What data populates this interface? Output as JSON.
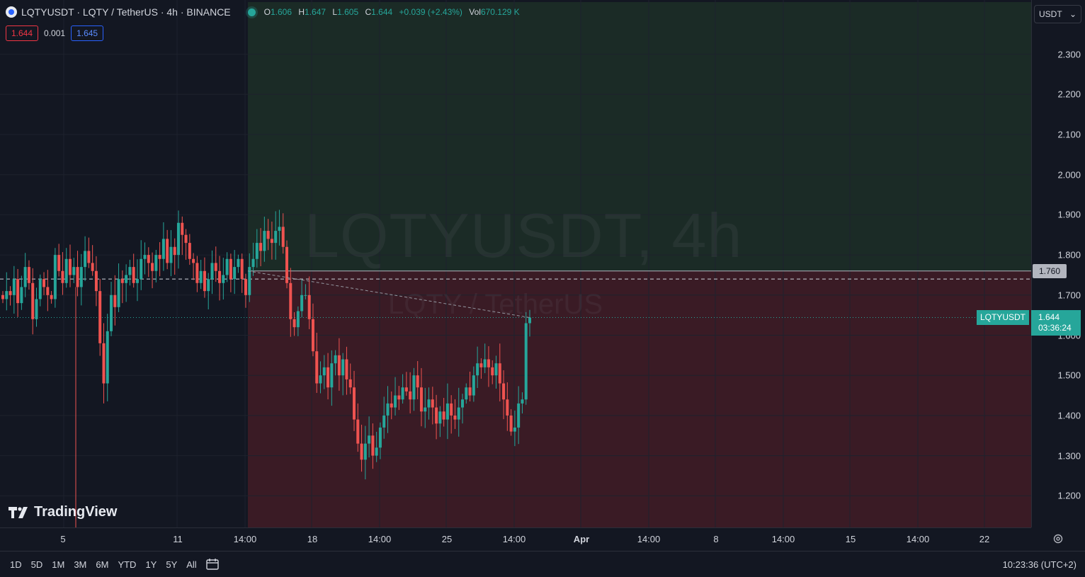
{
  "header": {
    "title": "LQTYUSDT · LQTY / TetherUS · 4h · BINANCE",
    "o_label": "O",
    "o": "1.606",
    "h_label": "H",
    "h": "1.647",
    "l_label": "L",
    "l": "1.605",
    "c_label": "C",
    "c": "1.644",
    "change": "+0.039 (+2.43%)",
    "vol_label": "Vol",
    "vol": "670.129 K"
  },
  "bid_ask": {
    "bid": "1.644",
    "spread": "0.001",
    "ask": "1.645"
  },
  "currency": {
    "label": "USDT",
    "chevron": "⌄"
  },
  "watermark": {
    "symbol": "LQTYUSDT, 4h",
    "name": "LQTY / TetherUS"
  },
  "branding": {
    "logo_text": "TradingView"
  },
  "tags": {
    "symbol": "LQTYUSDT",
    "last_price": "1.644",
    "countdown": "03:36:24",
    "level": "1.760"
  },
  "bottom_bar": {
    "ranges": [
      "1D",
      "5D",
      "1M",
      "3M",
      "6M",
      "YTD",
      "1Y",
      "5Y",
      "All"
    ],
    "clock": "10:23:36 (UTC+2)"
  },
  "colors": {
    "up": "#26a69a",
    "down": "#ef5350",
    "bg": "#131722",
    "grid": "#1e222d",
    "target_zone": "#1b2b26",
    "stop_zone": "#3a1b25"
  },
  "chart_data": {
    "type": "candlestick",
    "ylim": [
      1.12,
      2.43
    ],
    "y_ticks": [
      "2.300",
      "2.200",
      "2.100",
      "2.000",
      "1.900",
      "1.800",
      "1.700",
      "1.600",
      "1.500",
      "1.400",
      "1.300",
      "1.200"
    ],
    "x_ticks": [
      "5",
      "11",
      "14:00",
      "18",
      "14:00",
      "25",
      "14:00",
      "Apr",
      "14:00",
      "8",
      "14:00",
      "15",
      "14:00",
      "22"
    ],
    "last_price": 1.644,
    "avg_price_line": 1.74,
    "position": {
      "entry": 1.76,
      "target_top": 2.43,
      "stop_bottom": 1.12
    },
    "closes": [
      1.69,
      1.71,
      1.7,
      1.74,
      1.68,
      1.72,
      1.77,
      1.73,
      1.64,
      1.69,
      1.74,
      1.72,
      1.7,
      1.69,
      1.8,
      1.76,
      1.73,
      1.79,
      1.75,
      1.77,
      1.72,
      1.77,
      1.81,
      1.78,
      1.76,
      1.71,
      1.58,
      1.48,
      1.61,
      1.7,
      1.67,
      1.74,
      1.73,
      1.75,
      1.77,
      1.73,
      1.74,
      1.79,
      1.8,
      1.78,
      1.76,
      1.8,
      1.79,
      1.84,
      1.78,
      1.82,
      1.8,
      1.88,
      1.85,
      1.83,
      1.79,
      1.78,
      1.73,
      1.76,
      1.71,
      1.74,
      1.78,
      1.76,
      1.73,
      1.75,
      1.79,
      1.74,
      1.77,
      1.79,
      1.74,
      1.7,
      1.77,
      1.79,
      1.83,
      1.81,
      1.86,
      1.84,
      1.83,
      1.86,
      1.87,
      1.82,
      1.73,
      1.64,
      1.62,
      1.66,
      1.7,
      1.7,
      1.64,
      1.56,
      1.48,
      1.5,
      1.52,
      1.47,
      1.53,
      1.55,
      1.5,
      1.54,
      1.49,
      1.47,
      1.39,
      1.33,
      1.29,
      1.33,
      1.35,
      1.3,
      1.32,
      1.37,
      1.4,
      1.43,
      1.42,
      1.45,
      1.44,
      1.47,
      1.46,
      1.44,
      1.5,
      1.47,
      1.41,
      1.42,
      1.44,
      1.42,
      1.38,
      1.41,
      1.39,
      1.43,
      1.4,
      1.39,
      1.42,
      1.44,
      1.47,
      1.45,
      1.5,
      1.53,
      1.52,
      1.54,
      1.52,
      1.5,
      1.53,
      1.48,
      1.44,
      1.4,
      1.36,
      1.37,
      1.43,
      1.44,
      1.63,
      1.644
    ]
  }
}
